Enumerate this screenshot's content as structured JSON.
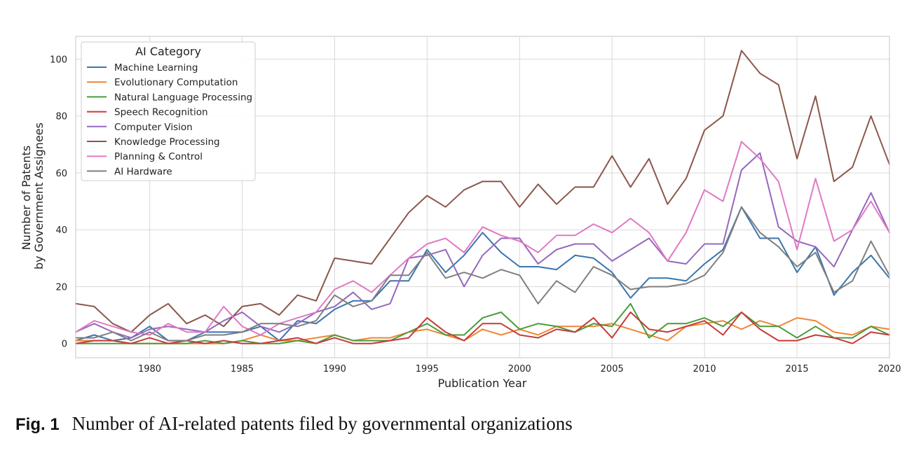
{
  "caption": {
    "label": "Fig. 1",
    "text": "Number of AI-related patents filed by governmental organizations"
  },
  "chart_data": {
    "type": "line",
    "title": "",
    "xlabel": "Publication Year",
    "ylabel_lines": [
      "Number of Patents",
      "by Government Assignees"
    ],
    "xlim": [
      1976,
      2020
    ],
    "ylim": [
      -5,
      108
    ],
    "xticks": [
      1980,
      1985,
      1990,
      1995,
      2000,
      2005,
      2010,
      2015,
      2020
    ],
    "yticks": [
      0,
      20,
      40,
      60,
      80,
      100
    ],
    "grid": true,
    "legend": {
      "title": "AI Category",
      "placement": "top-left"
    },
    "x": [
      1976,
      1977,
      1978,
      1979,
      1980,
      1981,
      1982,
      1983,
      1984,
      1985,
      1986,
      1987,
      1988,
      1989,
      1990,
      1991,
      1992,
      1993,
      1994,
      1995,
      1996,
      1997,
      1998,
      1999,
      2000,
      2001,
      2002,
      2003,
      2004,
      2005,
      2006,
      2007,
      2008,
      2009,
      2010,
      2011,
      2012,
      2013,
      2014,
      2015,
      2016,
      2017,
      2018,
      2019,
      2020
    ],
    "series": [
      {
        "name": "Machine Learning",
        "color": "#3a75b0",
        "values": [
          1,
          3,
          1,
          2,
          6,
          1,
          1,
          4,
          4,
          4,
          6,
          1,
          8,
          7,
          12,
          15,
          15,
          22,
          22,
          33,
          25,
          31,
          39,
          32,
          27,
          27,
          26,
          31,
          30,
          25,
          16,
          23,
          23,
          22,
          28,
          33,
          48,
          37,
          37,
          25,
          34,
          17,
          25,
          31,
          23
        ]
      },
      {
        "name": "Evolutionary Computation",
        "color": "#ef8636",
        "values": [
          1,
          1,
          1,
          0,
          0,
          0,
          0,
          0,
          0,
          1,
          3,
          1,
          1,
          2,
          3,
          1,
          2,
          2,
          4,
          5,
          3,
          1,
          5,
          3,
          5,
          3,
          6,
          6,
          6,
          7,
          5,
          3,
          1,
          6,
          7,
          8,
          5,
          8,
          6,
          9,
          8,
          4,
          3,
          6,
          5
        ]
      },
      {
        "name": "Natural Language Processing",
        "color": "#4a9b3c",
        "values": [
          0,
          0,
          0,
          0,
          0,
          0,
          0,
          1,
          0,
          1,
          0,
          0,
          1,
          0,
          3,
          1,
          1,
          1,
          4,
          7,
          3,
          3,
          9,
          11,
          5,
          7,
          6,
          4,
          7,
          6,
          14,
          2,
          7,
          7,
          9,
          6,
          11,
          6,
          6,
          2,
          6,
          2,
          2,
          6,
          3
        ]
      },
      {
        "name": "Speech Recognition",
        "color": "#c63b3b",
        "values": [
          0,
          1,
          1,
          0,
          2,
          0,
          1,
          0,
          1,
          0,
          0,
          1,
          2,
          0,
          2,
          0,
          0,
          1,
          2,
          9,
          4,
          1,
          7,
          7,
          3,
          2,
          5,
          4,
          9,
          2,
          11,
          5,
          4,
          6,
          8,
          3,
          11,
          5,
          1,
          1,
          3,
          2,
          0,
          4,
          3
        ]
      },
      {
        "name": "Computer Vision",
        "color": "#9468bd",
        "values": [
          4,
          7,
          4,
          2,
          5,
          6,
          5,
          4,
          8,
          11,
          6,
          4,
          7,
          11,
          13,
          18,
          12,
          14,
          30,
          31,
          33,
          20,
          31,
          37,
          37,
          28,
          33,
          35,
          35,
          29,
          33,
          37,
          29,
          28,
          35,
          35,
          61,
          67,
          41,
          36,
          34,
          27,
          40,
          53,
          39
        ]
      },
      {
        "name": "Knowledge Processing",
        "color": "#8c564b",
        "values": [
          14,
          13,
          7,
          4,
          10,
          14,
          7,
          10,
          6,
          13,
          14,
          10,
          17,
          15,
          30,
          29,
          28,
          37,
          46,
          52,
          48,
          54,
          57,
          57,
          48,
          56,
          49,
          55,
          55,
          66,
          55,
          65,
          49,
          58,
          75,
          80,
          103,
          95,
          91,
          65,
          87,
          57,
          62,
          80,
          63
        ]
      },
      {
        "name": "Planning & Control",
        "color": "#e079c3",
        "values": [
          4,
          8,
          6,
          4,
          3,
          7,
          4,
          4,
          13,
          6,
          3,
          7,
          9,
          11,
          19,
          22,
          18,
          24,
          30,
          35,
          37,
          32,
          41,
          38,
          36,
          32,
          38,
          38,
          42,
          39,
          44,
          39,
          29,
          39,
          54,
          50,
          71,
          65,
          57,
          33,
          58,
          36,
          40,
          50,
          39
        ]
      },
      {
        "name": "AI Hardware",
        "color": "#7f7f7f",
        "values": [
          2,
          2,
          4,
          1,
          4,
          1,
          1,
          3,
          3,
          4,
          7,
          7,
          6,
          8,
          17,
          13,
          15,
          24,
          24,
          32,
          23,
          25,
          23,
          26,
          24,
          14,
          22,
          18,
          27,
          24,
          19,
          20,
          20,
          21,
          24,
          32,
          48,
          39,
          34,
          27,
          32,
          18,
          22,
          36,
          24
        ]
      }
    ]
  }
}
